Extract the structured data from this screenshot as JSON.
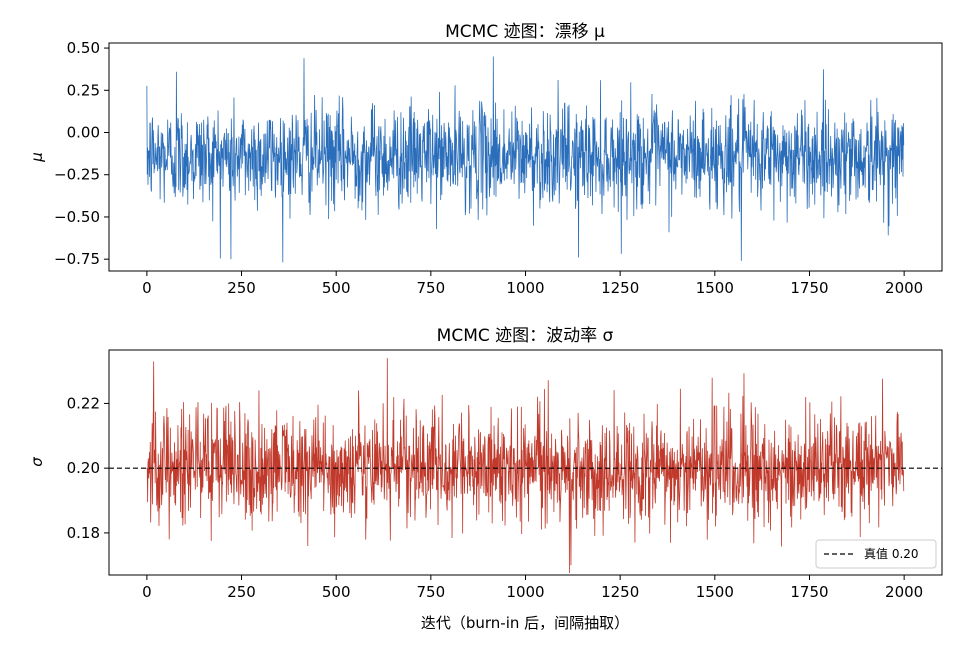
{
  "chart_data": [
    {
      "type": "line",
      "title": "MCMC 迹图：漂移 μ",
      "xlabel": "",
      "ylabel": "μ",
      "xlim": [
        -100,
        2100
      ],
      "ylim": [
        -0.82,
        0.53
      ],
      "xticks": [
        0,
        250,
        500,
        750,
        1000,
        1250,
        1500,
        1750,
        2000
      ],
      "yticks": [
        -0.75,
        -0.5,
        -0.25,
        0.0,
        0.25,
        0.5
      ],
      "ytick_labels": [
        "−0.75",
        "−0.50",
        "−0.25",
        "0.00",
        "0.25",
        "0.50"
      ],
      "series": [
        {
          "color": "#2a6ebb",
          "n_samples": 2000,
          "mean": -0.14,
          "std": 0.15,
          "anchors": [
            {
              "x": 78,
              "y": 0.36
            },
            {
              "x": 222,
              "y": -0.75
            },
            {
              "x": 415,
              "y": 0.44
            },
            {
              "x": 915,
              "y": 0.45
            },
            {
              "x": 1140,
              "y": -0.74
            },
            {
              "x": 1570,
              "y": -0.76
            }
          ]
        }
      ],
      "grid": false
    },
    {
      "type": "line",
      "title": "MCMC 迹图：波动率 σ",
      "xlabel": "迭代（burn-in 后，间隔抽取）",
      "ylabel": "σ",
      "xlim": [
        -100,
        2100
      ],
      "ylim": [
        0.167,
        0.2365
      ],
      "xticks": [
        0,
        250,
        500,
        750,
        1000,
        1250,
        1500,
        1750,
        2000
      ],
      "yticks": [
        0.18,
        0.2,
        0.22
      ],
      "ytick_labels": [
        "0.18",
        "0.20",
        "0.22"
      ],
      "series": [
        {
          "color": "#c0392b",
          "n_samples": 2000,
          "mean": 0.2,
          "std": 0.0085,
          "anchors": [
            {
              "x": 18,
              "y": 0.233
            },
            {
              "x": 635,
              "y": 0.234
            },
            {
              "x": 1120,
              "y": 0.17
            }
          ]
        }
      ],
      "reference_line": {
        "y": 0.2,
        "style": "dashed",
        "color": "#000000"
      },
      "legend": {
        "placement": "lower-right",
        "entries": [
          {
            "label": "真值 0.20",
            "style": "dashed"
          }
        ]
      },
      "grid": false
    }
  ]
}
